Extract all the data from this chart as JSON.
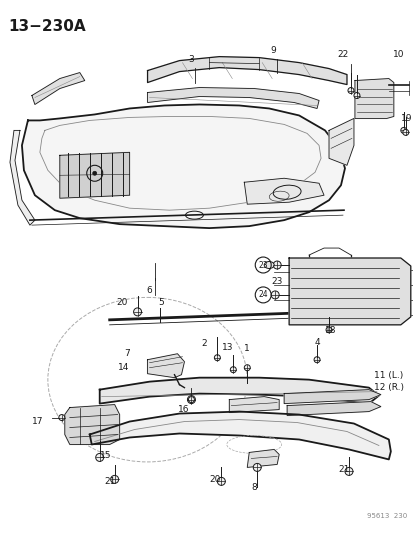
{
  "title": "13−230A",
  "watermark": "95613  230",
  "background_color": "#ffffff",
  "fig_width": 4.14,
  "fig_height": 5.33,
  "dpi": 100,
  "title_fontsize": 11,
  "label_fs": 6.5
}
